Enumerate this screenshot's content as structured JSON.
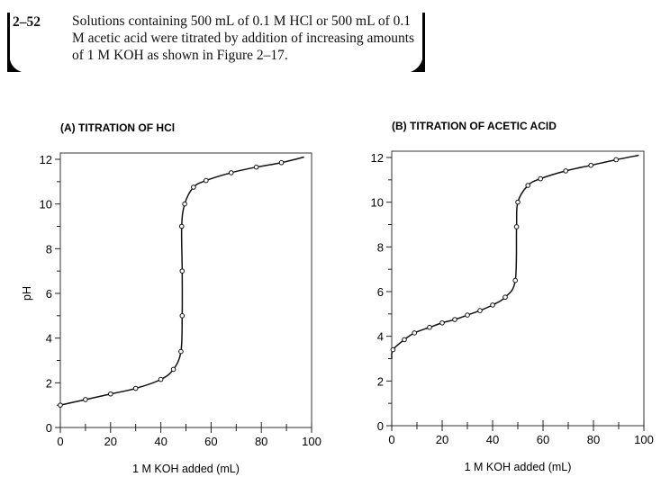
{
  "problem": {
    "number": "2–52",
    "text": "Solutions containing 500 mL of 0.1 M HCl or 500 mL of 0.1 M acetic acid were titrated by addition of increasing amounts of 1 M KOH as shown in Figure 2–17."
  },
  "chart_data": [
    {
      "type": "line",
      "title": "(A) TITRATION OF HCl",
      "xlabel": "1 M KOH added (mL)",
      "ylabel": "pH",
      "xlim": [
        0,
        100
      ],
      "ylim": [
        0,
        12
      ],
      "xticks": [
        0,
        20,
        40,
        60,
        80,
        100
      ],
      "yticks": [
        0,
        2,
        4,
        6,
        8,
        10,
        12
      ],
      "grid": false,
      "points": [
        [
          0,
          1.0
        ],
        [
          10,
          1.25
        ],
        [
          20,
          1.5
        ],
        [
          30,
          1.75
        ],
        [
          40,
          2.15
        ],
        [
          45,
          2.6
        ],
        [
          48,
          3.4
        ],
        [
          48.5,
          5
        ],
        [
          48.5,
          7
        ],
        [
          48.3,
          9
        ],
        [
          49.5,
          10
        ],
        [
          53,
          10.75
        ],
        [
          58,
          11.05
        ],
        [
          68,
          11.4
        ],
        [
          78,
          11.65
        ],
        [
          88,
          11.85
        ]
      ],
      "curve_end": [
        97,
        12.1
      ]
    },
    {
      "type": "line",
      "title": "(B) TITRATION OF ACETIC ACID",
      "xlabel": "1 M KOH added (mL)",
      "ylabel": "",
      "xlim": [
        0,
        100
      ],
      "ylim": [
        0,
        12
      ],
      "xticks": [
        0,
        20,
        40,
        60,
        80,
        100
      ],
      "yticks": [
        0,
        2,
        4,
        6,
        8,
        10,
        12
      ],
      "grid": false,
      "curve_start": [
        0,
        3.0
      ],
      "points": [
        [
          0.5,
          3.4
        ],
        [
          5,
          3.85
        ],
        [
          9,
          4.15
        ],
        [
          15,
          4.4
        ],
        [
          20,
          4.6
        ],
        [
          25,
          4.75
        ],
        [
          30,
          4.95
        ],
        [
          35,
          5.15
        ],
        [
          40,
          5.4
        ],
        [
          45,
          5.75
        ],
        [
          49,
          6.5
        ],
        [
          49.5,
          8.9
        ],
        [
          50,
          10
        ],
        [
          54,
          10.75
        ],
        [
          59,
          11.05
        ],
        [
          69,
          11.4
        ],
        [
          79,
          11.65
        ],
        [
          89,
          11.9
        ]
      ],
      "curve_end": [
        98,
        12.1
      ]
    }
  ]
}
